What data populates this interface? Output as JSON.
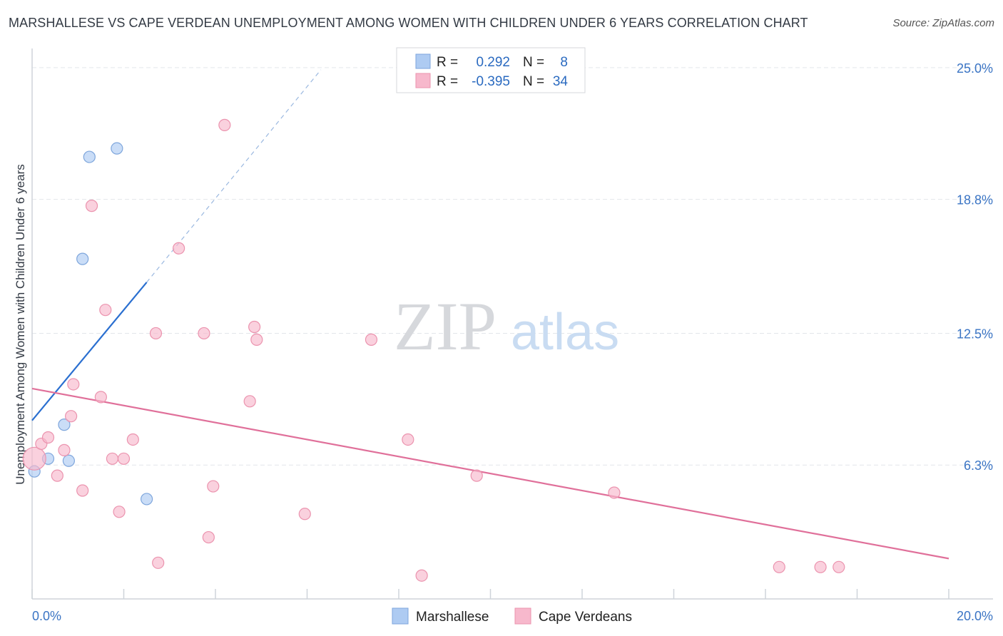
{
  "title": "MARSHALLESE VS CAPE VERDEAN UNEMPLOYMENT AMONG WOMEN WITH CHILDREN UNDER 6 YEARS CORRELATION CHART",
  "source": "Source: ZipAtlas.com",
  "watermark": {
    "zip": "ZIP",
    "atlas": "atlas"
  },
  "legend": {
    "rows": [
      {
        "r_label": "R =",
        "r_value": "0.292",
        "n_label": "N =",
        "n_value": "8",
        "color": "#aecbf2"
      },
      {
        "r_label": "R =",
        "r_value": "-0.395",
        "n_label": "N =",
        "n_value": "34",
        "color": "#f7b8cc"
      }
    ]
  },
  "chart_data": {
    "type": "scatter",
    "title": "MARSHALLESE VS CAPE VERDEAN UNEMPLOYMENT AMONG WOMEN WITH CHILDREN UNDER 6 YEARS CORRELATION CHART",
    "xlabel": "",
    "ylabel": "Unemployment Among Women with Children Under 6 years",
    "xlim": [
      0,
      20
    ],
    "ylim": [
      0,
      25.5
    ],
    "y_ticks": [
      6.3,
      12.5,
      18.8,
      25.0
    ],
    "y_tick_labels": [
      "6.3%",
      "12.5%",
      "18.8%",
      "25.0%"
    ],
    "x_tick_labels": [
      "0.0%",
      "20.0%"
    ],
    "series": [
      {
        "name": "Marshallese",
        "color": "#aecbf2",
        "stroke": "#7ea6dc",
        "line_color": "#2a6fd0",
        "points": [
          [
            0.05,
            6.0
          ],
          [
            0.35,
            6.6
          ],
          [
            0.8,
            6.5
          ],
          [
            0.7,
            8.2
          ],
          [
            1.1,
            16.0
          ],
          [
            1.25,
            20.8
          ],
          [
            1.85,
            21.2
          ],
          [
            2.5,
            4.7
          ]
        ],
        "trend": {
          "x0": 0.0,
          "y0": 8.4,
          "x1": 2.5,
          "y1": 14.9,
          "dash_x1": 6.3,
          "dash_y1": 24.9
        }
      },
      {
        "name": "Cape Verdeans",
        "color": "#f7b8cc",
        "stroke": "#eb93ae",
        "line_color": "#e0709a",
        "points": [
          [
            0.05,
            6.6
          ],
          [
            0.2,
            7.3
          ],
          [
            0.35,
            7.6
          ],
          [
            0.55,
            5.8
          ],
          [
            0.7,
            7.0
          ],
          [
            0.85,
            8.6
          ],
          [
            0.9,
            10.1
          ],
          [
            1.1,
            5.1
          ],
          [
            1.3,
            18.5
          ],
          [
            1.5,
            9.5
          ],
          [
            1.6,
            13.6
          ],
          [
            1.75,
            6.6
          ],
          [
            1.9,
            4.1
          ],
          [
            2.0,
            6.6
          ],
          [
            2.2,
            7.5
          ],
          [
            2.7,
            12.5
          ],
          [
            2.75,
            1.7
          ],
          [
            3.2,
            16.5
          ],
          [
            3.75,
            12.5
          ],
          [
            3.85,
            2.9
          ],
          [
            3.95,
            5.3
          ],
          [
            4.2,
            22.3
          ],
          [
            4.75,
            9.3
          ],
          [
            4.85,
            12.8
          ],
          [
            4.9,
            12.2
          ],
          [
            5.95,
            4.0
          ],
          [
            7.4,
            12.2
          ],
          [
            8.2,
            7.5
          ],
          [
            8.5,
            1.1
          ],
          [
            9.7,
            5.8
          ],
          [
            12.7,
            5.0
          ],
          [
            16.3,
            1.5
          ],
          [
            17.2,
            1.5
          ],
          [
            17.6,
            1.5
          ]
        ],
        "trend": {
          "x0": 0.0,
          "y0": 9.9,
          "x1": 20.0,
          "y1": 1.9
        }
      }
    ],
    "bottom_legend": [
      "Marshallese",
      "Cape Verdeans"
    ]
  }
}
